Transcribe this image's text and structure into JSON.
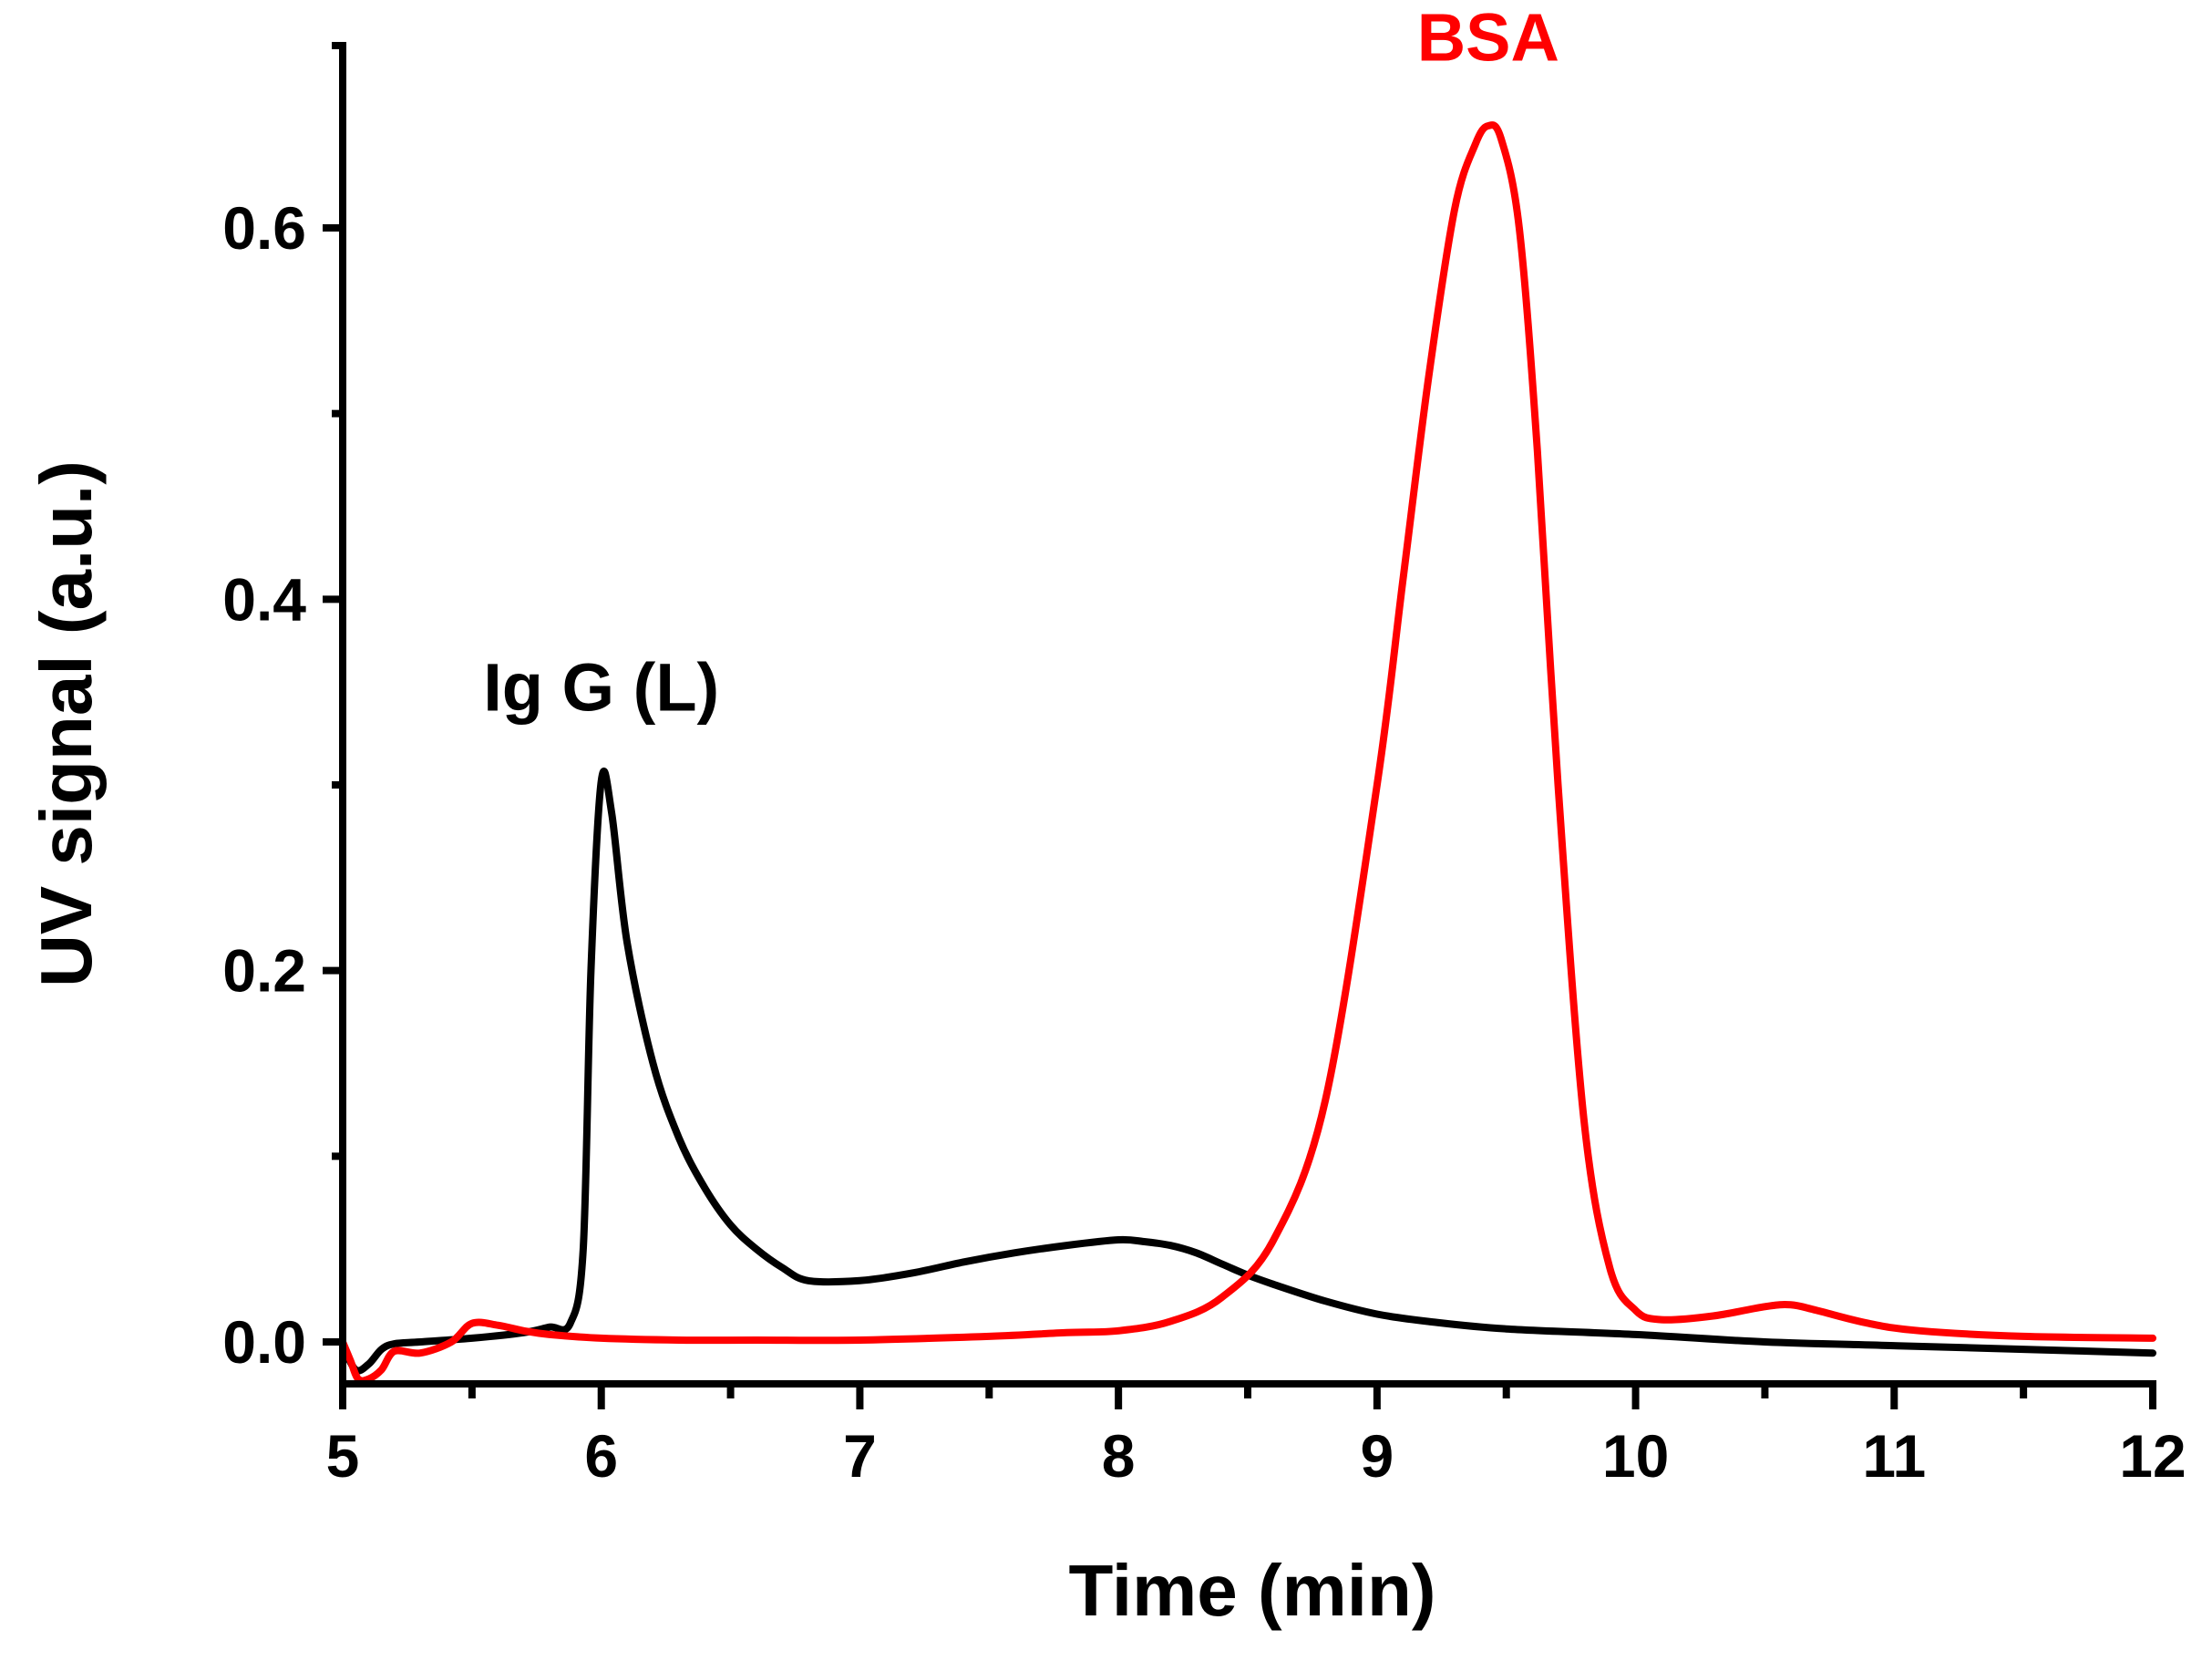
{
  "chart_data": {
    "type": "line",
    "title": "",
    "xlabel": "Time (min)",
    "ylabel": "UV signal (a.u.)",
    "xlim": [
      5,
      12
    ],
    "ylim": [
      -0.02,
      0.7
    ],
    "x_ticks": [
      5,
      6,
      7,
      8,
      9,
      10,
      11,
      12
    ],
    "x_tick_labels": [
      "5",
      "6",
      "7",
      "8",
      "9",
      "10",
      "11",
      "12"
    ],
    "x_minor_ticks": [
      5.5,
      6.5,
      7.5,
      8.5,
      9.5,
      10.5,
      11.5
    ],
    "y_ticks": [
      0.0,
      0.2,
      0.4,
      0.6
    ],
    "y_tick_labels": [
      "0.0",
      "0.2",
      "0.4",
      "0.6"
    ],
    "y_minor_ticks": [
      0.1,
      0.3,
      0.5
    ],
    "grid": false,
    "series": [
      {
        "name": "Ig G (L)",
        "color": "#000000",
        "x": [
          5.0,
          5.05,
          5.1,
          5.15,
          5.2,
          5.3,
          5.5,
          5.7,
          5.8,
          5.88,
          5.93,
          5.96,
          6.0,
          6.04,
          6.1,
          6.2,
          6.3,
          6.4,
          6.5,
          6.6,
          6.7,
          6.8,
          7.0,
          7.2,
          7.4,
          7.6,
          7.8,
          8.0,
          8.1,
          8.2,
          8.3,
          8.4,
          8.5,
          8.6,
          8.8,
          9.0,
          9.2,
          9.5,
          10.0,
          10.5,
          11.0,
          11.5,
          12.0
        ],
        "y": [
          -0.002,
          -0.015,
          -0.012,
          -0.004,
          -0.001,
          0.0,
          0.002,
          0.005,
          0.008,
          0.01,
          0.05,
          0.2,
          0.302,
          0.285,
          0.215,
          0.15,
          0.11,
          0.083,
          0.063,
          0.05,
          0.04,
          0.033,
          0.033,
          0.037,
          0.043,
          0.048,
          0.052,
          0.055,
          0.054,
          0.052,
          0.048,
          0.042,
          0.036,
          0.031,
          0.022,
          0.015,
          0.011,
          0.007,
          0.004,
          0.0,
          -0.002,
          -0.004,
          -0.006
        ]
      },
      {
        "name": "BSA",
        "color": "#ff0000",
        "x": [
          5.0,
          5.03,
          5.06,
          5.1,
          5.15,
          5.2,
          5.3,
          5.42,
          5.5,
          5.6,
          5.7,
          5.8,
          6.0,
          6.3,
          6.6,
          7.0,
          7.5,
          7.8,
          8.0,
          8.2,
          8.4,
          8.6,
          8.8,
          9.0,
          9.1,
          9.2,
          9.3,
          9.38,
          9.43,
          9.48,
          9.55,
          9.62,
          9.7,
          9.8,
          9.9,
          10.0,
          10.1,
          10.3,
          10.5,
          10.6,
          10.7,
          10.9,
          11.1,
          11.5,
          12.0
        ],
        "y": [
          0.0,
          -0.01,
          -0.02,
          -0.02,
          -0.015,
          -0.005,
          -0.006,
          0.0,
          0.01,
          0.009,
          0.006,
          0.004,
          0.002,
          0.001,
          0.001,
          0.001,
          0.003,
          0.005,
          0.006,
          0.011,
          0.024,
          0.055,
          0.13,
          0.3,
          0.41,
          0.52,
          0.61,
          0.645,
          0.655,
          0.648,
          0.6,
          0.48,
          0.3,
          0.12,
          0.04,
          0.017,
          0.012,
          0.014,
          0.019,
          0.02,
          0.017,
          0.01,
          0.006,
          0.003,
          0.002
        ]
      }
    ],
    "annotations": [
      {
        "text": "Ig G (L)",
        "x": 6.0,
        "y": 0.34,
        "color": "#000000"
      },
      {
        "text": "BSA",
        "x": 9.43,
        "y": 0.69,
        "color": "#ff0000"
      }
    ]
  }
}
